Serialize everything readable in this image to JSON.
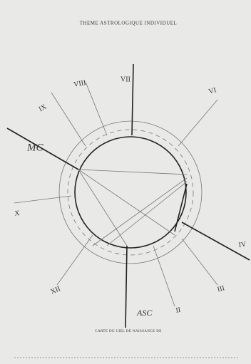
{
  "header": {
    "title": "THEME ASTROLOGIQUE INDIVIDUEL"
  },
  "axes": {
    "mc": "MC",
    "asc": "ASC"
  },
  "houses": [
    "IX",
    "VIII",
    "VII",
    "VI",
    "X",
    "XII",
    "II",
    "III",
    "IV"
  ],
  "footer": {
    "caption": "CARTE DU CIEL DE NAISSANCE DE"
  }
}
